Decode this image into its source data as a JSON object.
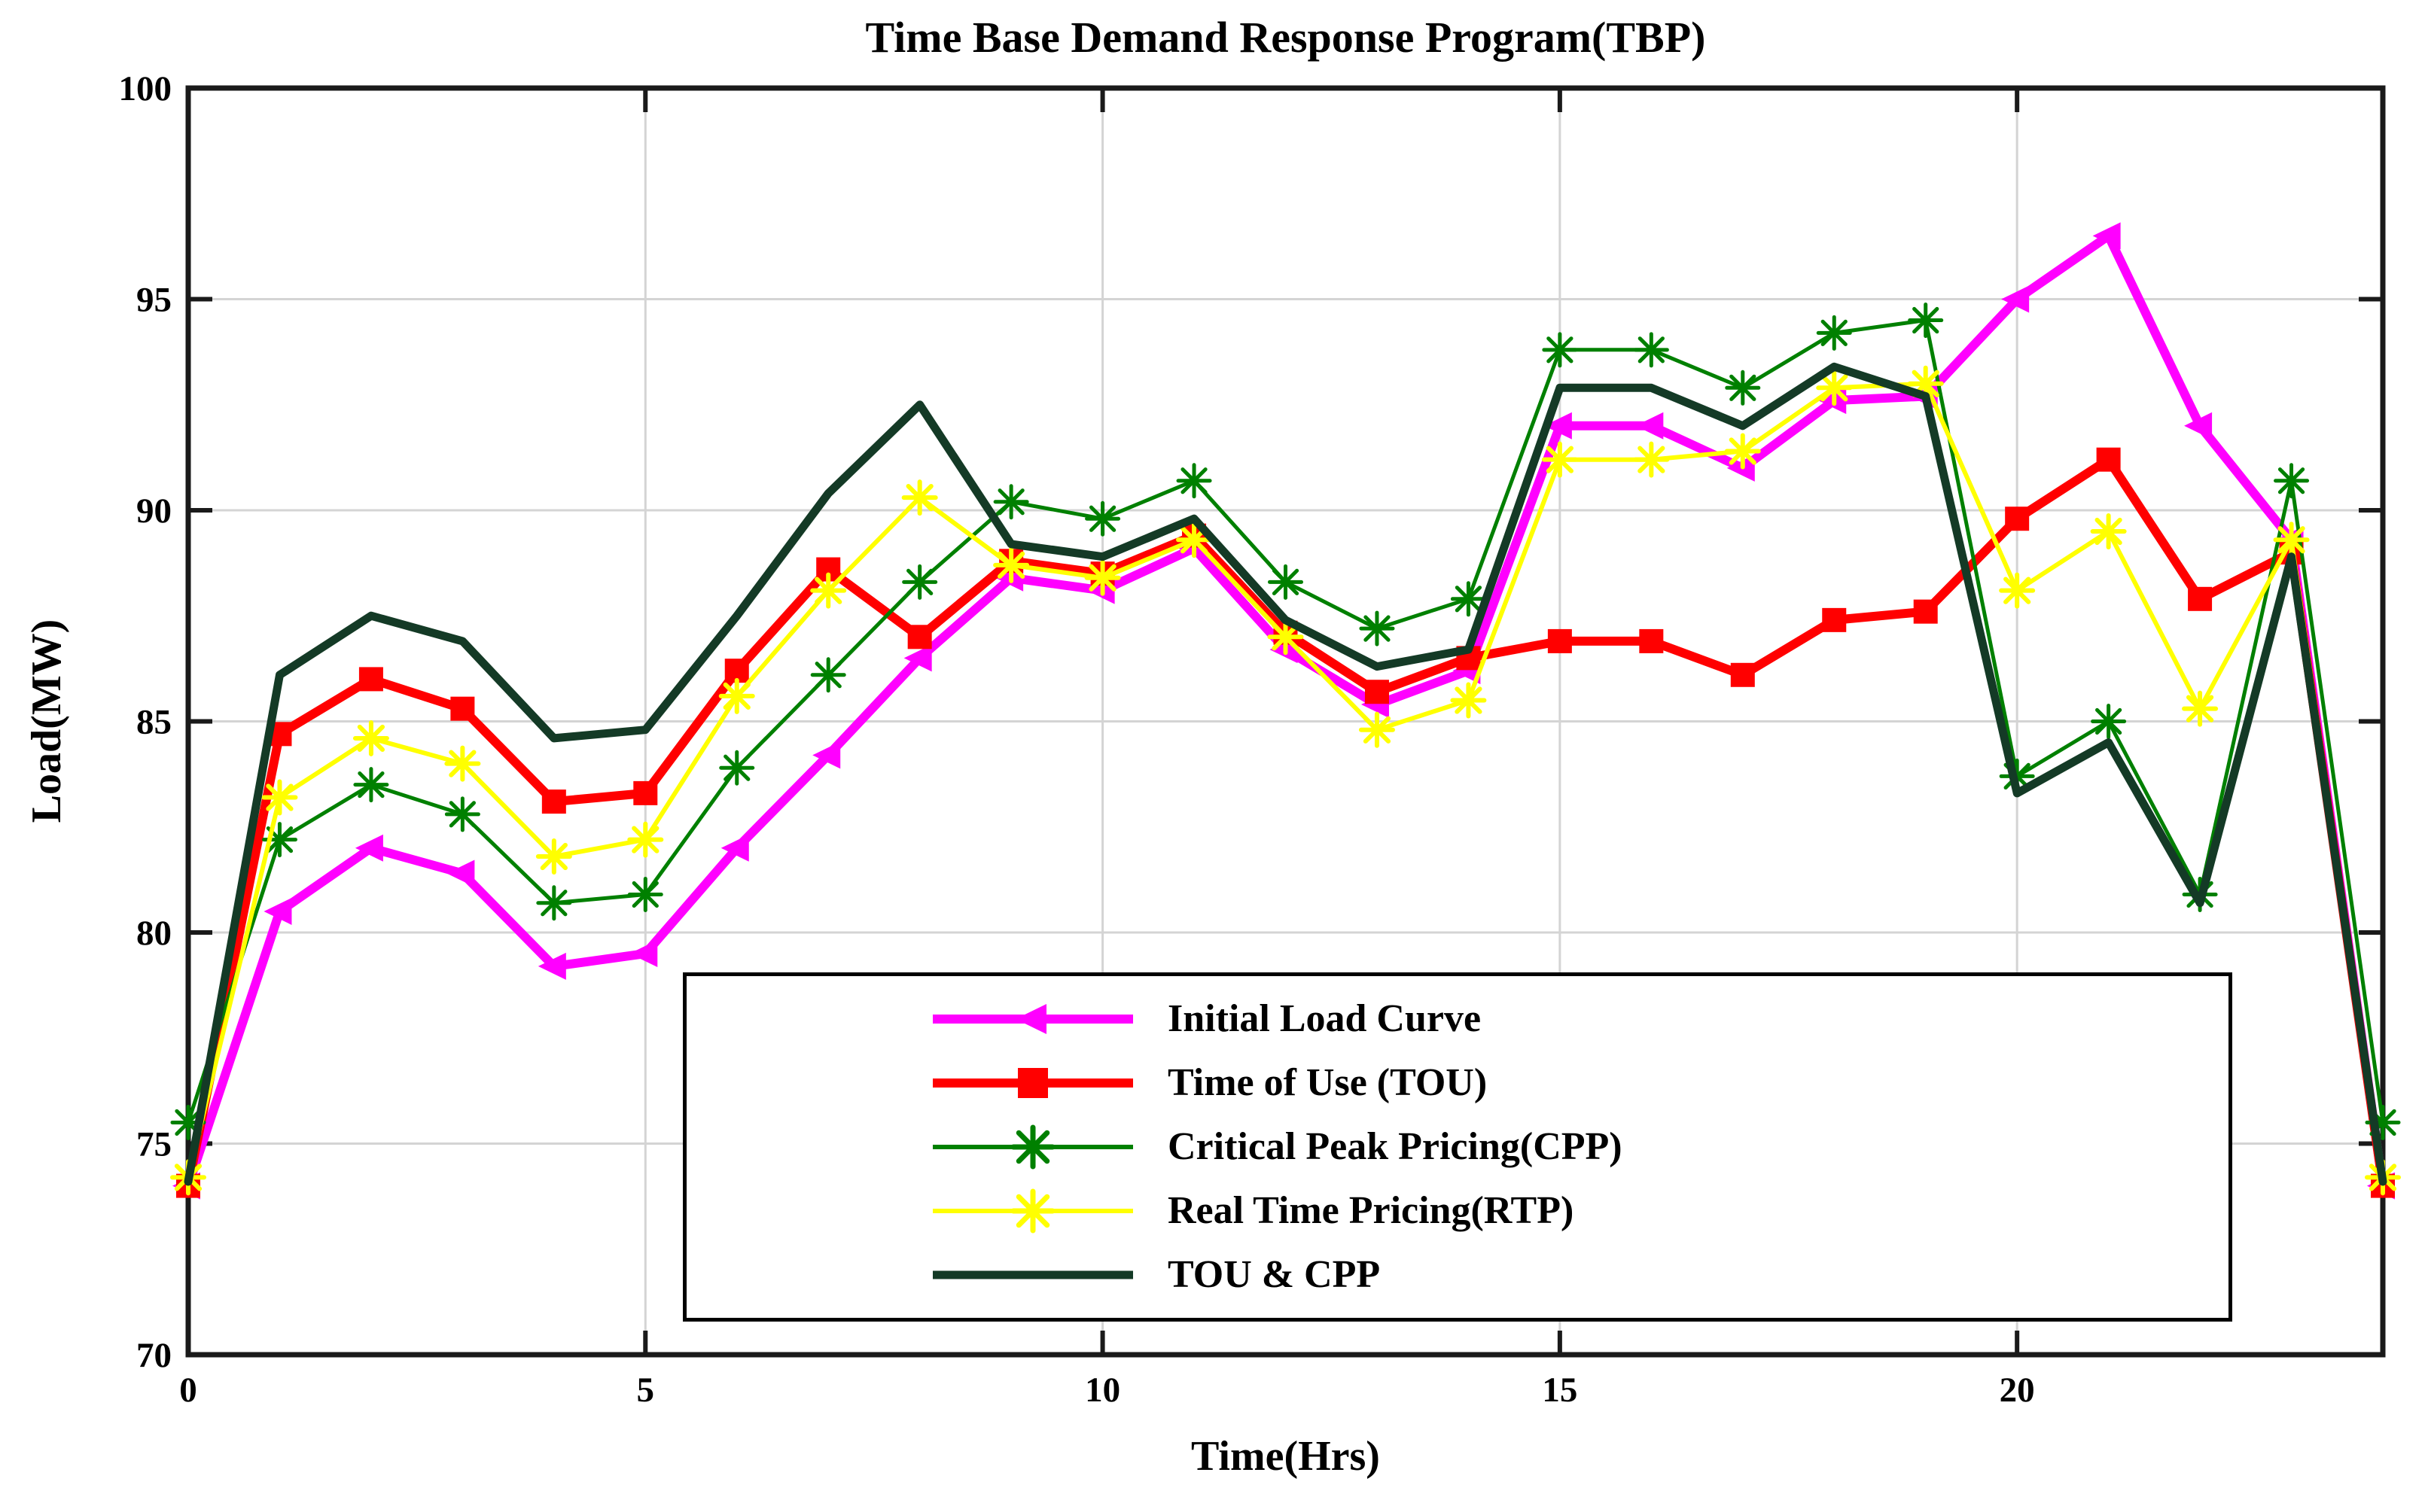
{
  "title": "Time Base Demand Response Program(TBP)",
  "x_axis": {
    "label": "Time(Hrs)",
    "min": 0,
    "max": 24,
    "ticks": [
      0,
      5,
      10,
      15,
      20
    ]
  },
  "y_axis": {
    "label": "Load(MW)",
    "min": 70,
    "max": 100,
    "ticks": [
      70,
      75,
      80,
      85,
      90,
      95,
      100
    ]
  },
  "colors": {
    "grid": "#d4d4d4",
    "frame": "#1a1a1a",
    "background": "#ffffff"
  },
  "chart_data": {
    "type": "line",
    "title": "Time Base Demand Response Program(TBP)",
    "xlabel": "Time(Hrs)",
    "ylabel": "Load(MW)",
    "xlim": [
      0,
      24
    ],
    "ylim": [
      70,
      100
    ],
    "grid": true,
    "legend_position": "inside-bottom-center",
    "x": [
      0,
      1,
      2,
      3,
      4,
      5,
      6,
      7,
      8,
      9,
      10,
      11,
      12,
      13,
      14,
      15,
      16,
      17,
      18,
      19,
      20,
      21,
      22,
      23,
      24
    ],
    "series": [
      {
        "name": "Initial Load Curve",
        "color": "#ff00ff",
        "marker": "triangle-left",
        "line_width": 12,
        "values": [
          74.0,
          80.5,
          82.0,
          81.4,
          79.2,
          79.5,
          82.0,
          84.2,
          86.5,
          88.4,
          88.1,
          89.1,
          86.7,
          85.4,
          86.2,
          92.0,
          92.0,
          91.0,
          92.6,
          92.7,
          95.0,
          96.5,
          92.0,
          89.3,
          74.0
        ]
      },
      {
        "name": "Time of Use (TOU)",
        "color": "#ff0000",
        "marker": "square",
        "line_width": 12,
        "values": [
          74.0,
          84.7,
          86.0,
          85.3,
          83.1,
          83.3,
          86.2,
          88.6,
          87.0,
          88.8,
          88.5,
          89.4,
          87.1,
          85.7,
          86.5,
          86.9,
          86.9,
          86.1,
          87.4,
          87.6,
          89.8,
          91.2,
          87.9,
          89.0,
          74.0
        ]
      },
      {
        "name": "Critical Peak Pricing(CPP)",
        "color": "#008000",
        "marker": "asterisk",
        "line_width": 5,
        "values": [
          75.5,
          82.2,
          83.5,
          82.8,
          80.7,
          80.9,
          83.9,
          86.1,
          88.3,
          90.2,
          89.8,
          90.7,
          88.3,
          87.2,
          87.9,
          93.8,
          93.8,
          92.9,
          94.2,
          94.5,
          83.7,
          85.0,
          80.9,
          90.7,
          75.5
        ]
      },
      {
        "name": "Real Time Pricing(RTP)",
        "color": "#ffff00",
        "marker": "asterisk",
        "line_width": 6,
        "values": [
          74.2,
          83.2,
          84.6,
          84.0,
          81.8,
          82.2,
          85.6,
          88.1,
          90.3,
          88.7,
          88.4,
          89.3,
          87.0,
          84.8,
          85.5,
          91.2,
          91.2,
          91.4,
          92.9,
          93.0,
          88.1,
          89.5,
          85.3,
          89.3,
          74.2
        ]
      },
      {
        "name": "TOU & CPP",
        "color": "#143a26",
        "marker": "none",
        "line_width": 11,
        "values": [
          74.1,
          86.1,
          87.5,
          86.9,
          84.6,
          84.8,
          87.5,
          90.4,
          92.5,
          89.2,
          88.9,
          89.8,
          87.4,
          86.3,
          86.7,
          92.9,
          92.9,
          92.0,
          93.4,
          92.7,
          83.3,
          84.5,
          80.7,
          88.9,
          74.1
        ]
      }
    ]
  }
}
